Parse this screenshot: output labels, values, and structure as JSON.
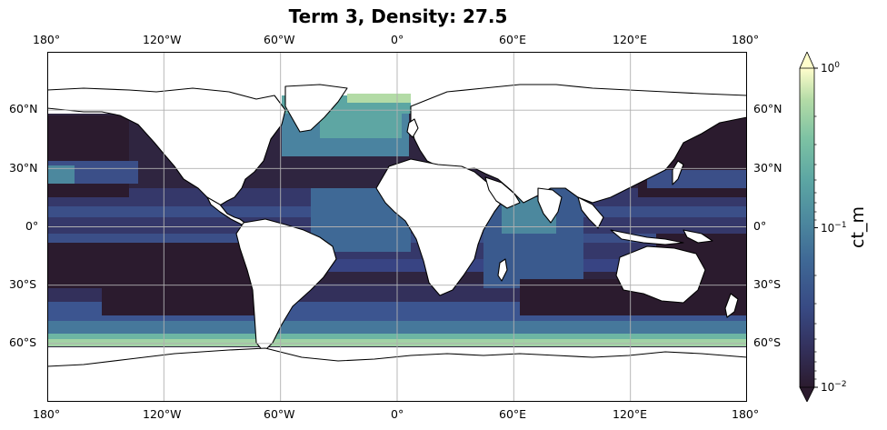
{
  "title": "Term 3, Density: 27.5",
  "lon_ticks": [
    "180°",
    "120°W",
    "60°W",
    "0°",
    "60°E",
    "120°E",
    "180°"
  ],
  "lat_ticks": [
    "60°N",
    "30°N",
    "0°",
    "30°S",
    "60°S"
  ],
  "colorbar": {
    "label": "ct_m",
    "scale": "log",
    "range": [
      0.01,
      1
    ],
    "tick_labels": [
      "10^0",
      "10^-1",
      "10^-2"
    ],
    "extend": "both",
    "colormap_stops": [
      "#2b1b2e",
      "#33305b",
      "#384a84",
      "#3f6996",
      "#4c889e",
      "#5ca6a3",
      "#7dc2a3",
      "#b3dba6",
      "#fffecc"
    ]
  },
  "map": {
    "projection": "PlateCarree",
    "lon_range": [
      -180,
      180
    ],
    "lat_range": [
      -90,
      90
    ],
    "gridlines": true,
    "land_color": "#ffffff",
    "coastline_color": "#000000"
  }
}
